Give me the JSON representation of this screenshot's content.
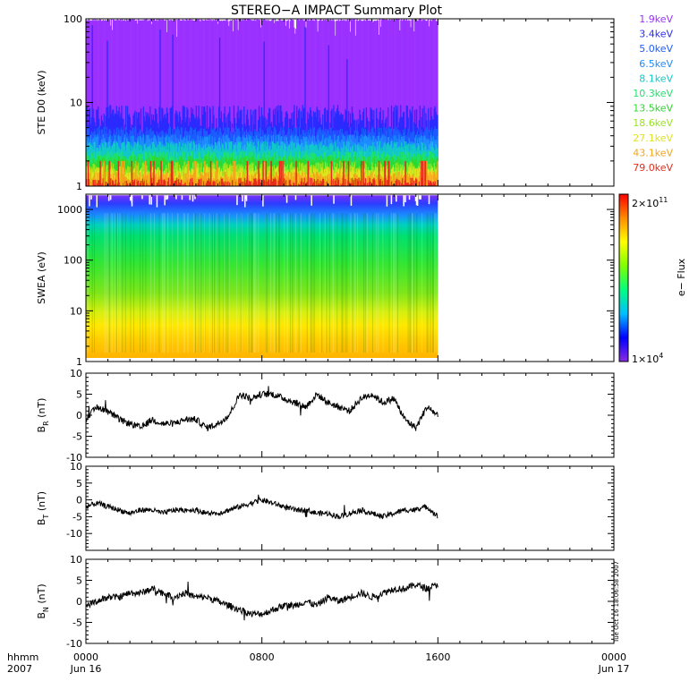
{
  "title": "STEREO−A IMPACT Summary Plot",
  "time_axis": {
    "format_label": "hhmm",
    "year_label": "2007",
    "range_hours": [
      0,
      24
    ],
    "ticks": [
      {
        "hour": 0,
        "label": "0000",
        "date": "Jun 16"
      },
      {
        "hour": 8,
        "label": "0800",
        "date": ""
      },
      {
        "hour": 16,
        "label": "1600",
        "date": ""
      },
      {
        "hour": 24,
        "label": "0000",
        "date": "Jun 17"
      }
    ],
    "data_end_hour": 16
  },
  "timestamp": "Tue Oct 16 18:06:58 2007",
  "colors": {
    "trace": "#000000",
    "ste_channels": [
      "#9b30ff",
      "#2a2aff",
      "#1c5cff",
      "#1c8cff",
      "#11c8c8",
      "#1ee36a",
      "#2ed82e",
      "#98e51f",
      "#e0e31e",
      "#f5a51b",
      "#e62b1b"
    ],
    "swea_scale": [
      "#8a2be2",
      "#0000ff",
      "#00bfff",
      "#00ff7f",
      "#7fff00",
      "#ffff00",
      "#ff8c00",
      "#ff0000"
    ]
  },
  "chart_data": [
    {
      "id": "ste",
      "type": "area",
      "ylabel": "STE D0 (keV)",
      "yscale": "log",
      "ylim": [
        1,
        100
      ],
      "yticks": [
        1,
        10,
        100
      ],
      "legend_placement": "right",
      "legend": [
        "1.9keV",
        "3.4keV",
        "5.0keV",
        "6.5keV",
        "8.1keV",
        "10.3keV",
        "13.5keV",
        "18.6keV",
        "27.1keV",
        "43.1keV",
        "79.0keV"
      ],
      "series": [
        {
          "name": "1.9keV",
          "typical_value": 95
        },
        {
          "name": "3.4keV",
          "typical_value": 5.5
        },
        {
          "name": "5.0keV",
          "typical_value": 4.5
        },
        {
          "name": "6.5keV",
          "typical_value": 3.6
        },
        {
          "name": "8.1keV",
          "typical_value": 3.0
        },
        {
          "name": "10.3keV",
          "typical_value": 2.3
        },
        {
          "name": "13.5keV",
          "typical_value": 2.0
        },
        {
          "name": "18.6keV",
          "typical_value": 1.7
        },
        {
          "name": "27.1keV",
          "typical_value": 1.5
        },
        {
          "name": "43.1keV",
          "typical_value": 1.3
        },
        {
          "name": "79.0keV",
          "typical_value": 1.1
        }
      ]
    },
    {
      "id": "swea",
      "type": "heatmap",
      "ylabel": "SWEA (eV)",
      "yscale": "log",
      "ylim": [
        1,
        2000
      ],
      "yticks": [
        1,
        10,
        100,
        1000
      ],
      "colorbar": {
        "label": "e− Flux",
        "min_label": "1×10",
        "min_exp": "4",
        "max_label": "2×10",
        "max_exp": "11"
      }
    },
    {
      "id": "br",
      "type": "line",
      "ylabel": "B",
      "ylabel_sub": "R",
      "ylabel_unit": "(nT)",
      "ylim": [
        -10,
        10
      ],
      "yticks": [
        -10,
        -5,
        0,
        5,
        10
      ],
      "x": [
        0,
        0.5,
        1,
        1.5,
        2,
        2.5,
        3,
        3.5,
        4,
        4.5,
        5,
        5.5,
        6,
        6.5,
        7,
        7.5,
        8,
        8.5,
        9,
        9.5,
        10,
        10.5,
        11,
        11.5,
        12,
        12.5,
        13,
        13.5,
        14,
        14.5,
        15,
        15.5,
        16
      ],
      "values": [
        -1,
        2,
        1,
        -1,
        -2,
        -3,
        -1,
        -2,
        -2,
        -1,
        -1,
        -3,
        -2,
        0,
        5,
        4,
        5,
        5,
        4,
        3,
        2,
        5,
        3,
        2,
        1,
        4,
        5,
        3,
        4,
        -1,
        -3,
        2,
        0
      ]
    },
    {
      "id": "bt",
      "type": "line",
      "ylabel": "B",
      "ylabel_sub": "T",
      "ylabel_unit": "(nT)",
      "ylim": [
        -15,
        10
      ],
      "yticks": [
        -10,
        -5,
        0,
        5,
        10
      ],
      "x": [
        0,
        0.5,
        1,
        1.5,
        2,
        2.5,
        3,
        3.5,
        4,
        4.5,
        5,
        5.5,
        6,
        6.5,
        7,
        7.5,
        8,
        8.5,
        9,
        9.5,
        10,
        10.5,
        11,
        11.5,
        12,
        12.5,
        13,
        13.5,
        14,
        14.5,
        15,
        15.5,
        16
      ],
      "values": [
        -2,
        -1,
        -2,
        -3,
        -4,
        -3,
        -3,
        -4,
        -3,
        -3,
        -3,
        -4,
        -4,
        -3,
        -2,
        -1,
        0,
        -1,
        -2,
        -3,
        -3,
        -4,
        -4,
        -5,
        -4,
        -3,
        -4,
        -5,
        -4,
        -3,
        -3,
        -2,
        -5
      ]
    },
    {
      "id": "bn",
      "type": "line",
      "ylabel": "B",
      "ylabel_sub": "N",
      "ylabel_unit": "(nT)",
      "ylim": [
        -10,
        10
      ],
      "yticks": [
        -10,
        -5,
        0,
        5,
        10
      ],
      "x": [
        0,
        0.5,
        1,
        1.5,
        2,
        2.5,
        3,
        3.5,
        4,
        4.5,
        5,
        5.5,
        6,
        6.5,
        7,
        7.5,
        8,
        8.5,
        9,
        9.5,
        10,
        10.5,
        11,
        11.5,
        12,
        12.5,
        13,
        13.5,
        14,
        14.5,
        15,
        15.5,
        16
      ],
      "values": [
        -1,
        0,
        1,
        1,
        2,
        2,
        3,
        2,
        1,
        2,
        1,
        1,
        0,
        -1,
        -2,
        -3,
        -3,
        -2,
        -1,
        -1,
        0,
        -1,
        1,
        0,
        1,
        2,
        1,
        2,
        3,
        3,
        4,
        3,
        4
      ]
    }
  ]
}
